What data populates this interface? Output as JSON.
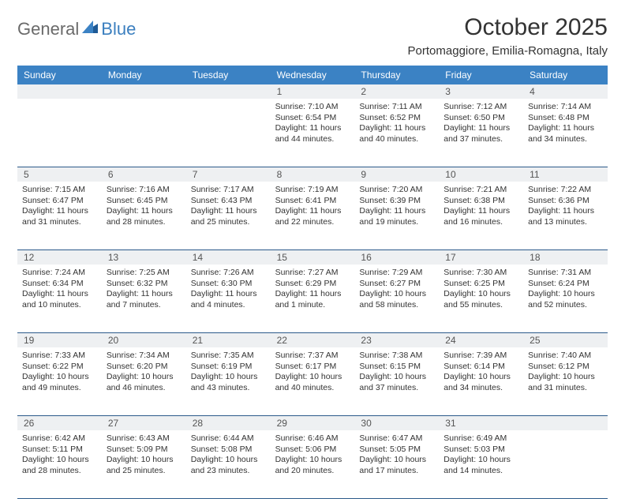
{
  "logo": {
    "text_general": "General",
    "text_blue": "Blue"
  },
  "title": "October 2025",
  "location": "Portomaggiore, Emilia-Romagna, Italy",
  "colors": {
    "header_bg": "#3b82c4",
    "header_text": "#ffffff",
    "daynum_bg": "#eef0f2",
    "week_border": "#2b5a8a",
    "body_text": "#333333",
    "logo_gray": "#6a6a6a",
    "logo_blue": "#3b7fbf"
  },
  "day_names": [
    "Sunday",
    "Monday",
    "Tuesday",
    "Wednesday",
    "Thursday",
    "Friday",
    "Saturday"
  ],
  "weeks": [
    [
      null,
      null,
      null,
      {
        "d": "1",
        "sr": "7:10 AM",
        "ss": "6:54 PM",
        "dl": "11 hours and 44 minutes."
      },
      {
        "d": "2",
        "sr": "7:11 AM",
        "ss": "6:52 PM",
        "dl": "11 hours and 40 minutes."
      },
      {
        "d": "3",
        "sr": "7:12 AM",
        "ss": "6:50 PM",
        "dl": "11 hours and 37 minutes."
      },
      {
        "d": "4",
        "sr": "7:14 AM",
        "ss": "6:48 PM",
        "dl": "11 hours and 34 minutes."
      }
    ],
    [
      {
        "d": "5",
        "sr": "7:15 AM",
        "ss": "6:47 PM",
        "dl": "11 hours and 31 minutes."
      },
      {
        "d": "6",
        "sr": "7:16 AM",
        "ss": "6:45 PM",
        "dl": "11 hours and 28 minutes."
      },
      {
        "d": "7",
        "sr": "7:17 AM",
        "ss": "6:43 PM",
        "dl": "11 hours and 25 minutes."
      },
      {
        "d": "8",
        "sr": "7:19 AM",
        "ss": "6:41 PM",
        "dl": "11 hours and 22 minutes."
      },
      {
        "d": "9",
        "sr": "7:20 AM",
        "ss": "6:39 PM",
        "dl": "11 hours and 19 minutes."
      },
      {
        "d": "10",
        "sr": "7:21 AM",
        "ss": "6:38 PM",
        "dl": "11 hours and 16 minutes."
      },
      {
        "d": "11",
        "sr": "7:22 AM",
        "ss": "6:36 PM",
        "dl": "11 hours and 13 minutes."
      }
    ],
    [
      {
        "d": "12",
        "sr": "7:24 AM",
        "ss": "6:34 PM",
        "dl": "11 hours and 10 minutes."
      },
      {
        "d": "13",
        "sr": "7:25 AM",
        "ss": "6:32 PM",
        "dl": "11 hours and 7 minutes."
      },
      {
        "d": "14",
        "sr": "7:26 AM",
        "ss": "6:30 PM",
        "dl": "11 hours and 4 minutes."
      },
      {
        "d": "15",
        "sr": "7:27 AM",
        "ss": "6:29 PM",
        "dl": "11 hours and 1 minute."
      },
      {
        "d": "16",
        "sr": "7:29 AM",
        "ss": "6:27 PM",
        "dl": "10 hours and 58 minutes."
      },
      {
        "d": "17",
        "sr": "7:30 AM",
        "ss": "6:25 PM",
        "dl": "10 hours and 55 minutes."
      },
      {
        "d": "18",
        "sr": "7:31 AM",
        "ss": "6:24 PM",
        "dl": "10 hours and 52 minutes."
      }
    ],
    [
      {
        "d": "19",
        "sr": "7:33 AM",
        "ss": "6:22 PM",
        "dl": "10 hours and 49 minutes."
      },
      {
        "d": "20",
        "sr": "7:34 AM",
        "ss": "6:20 PM",
        "dl": "10 hours and 46 minutes."
      },
      {
        "d": "21",
        "sr": "7:35 AM",
        "ss": "6:19 PM",
        "dl": "10 hours and 43 minutes."
      },
      {
        "d": "22",
        "sr": "7:37 AM",
        "ss": "6:17 PM",
        "dl": "10 hours and 40 minutes."
      },
      {
        "d": "23",
        "sr": "7:38 AM",
        "ss": "6:15 PM",
        "dl": "10 hours and 37 minutes."
      },
      {
        "d": "24",
        "sr": "7:39 AM",
        "ss": "6:14 PM",
        "dl": "10 hours and 34 minutes."
      },
      {
        "d": "25",
        "sr": "7:40 AM",
        "ss": "6:12 PM",
        "dl": "10 hours and 31 minutes."
      }
    ],
    [
      {
        "d": "26",
        "sr": "6:42 AM",
        "ss": "5:11 PM",
        "dl": "10 hours and 28 minutes."
      },
      {
        "d": "27",
        "sr": "6:43 AM",
        "ss": "5:09 PM",
        "dl": "10 hours and 25 minutes."
      },
      {
        "d": "28",
        "sr": "6:44 AM",
        "ss": "5:08 PM",
        "dl": "10 hours and 23 minutes."
      },
      {
        "d": "29",
        "sr": "6:46 AM",
        "ss": "5:06 PM",
        "dl": "10 hours and 20 minutes."
      },
      {
        "d": "30",
        "sr": "6:47 AM",
        "ss": "5:05 PM",
        "dl": "10 hours and 17 minutes."
      },
      {
        "d": "31",
        "sr": "6:49 AM",
        "ss": "5:03 PM",
        "dl": "10 hours and 14 minutes."
      },
      null
    ]
  ],
  "labels": {
    "sunrise": "Sunrise:",
    "sunset": "Sunset:",
    "daylight": "Daylight:"
  }
}
